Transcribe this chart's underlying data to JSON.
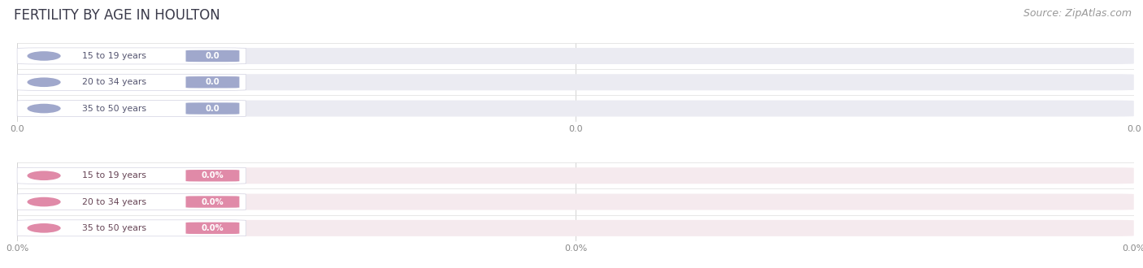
{
  "title": "FERTILITY BY AGE IN HOULTON",
  "source": "Source: ZipAtlas.com",
  "top_section": {
    "categories": [
      "15 to 19 years",
      "20 to 34 years",
      "35 to 50 years"
    ],
    "values": [
      0.0,
      0.0,
      0.0
    ],
    "bar_bg_color": "#ebebf2",
    "dot_color": "#a0a8cc",
    "label_text_color": "#555570",
    "value_bg_color": "#a0a8cc",
    "value_text_color": "#ffffff",
    "tick_labels": [
      "0.0",
      "0.0",
      "0.0"
    ],
    "xlabel_tick_labels": [
      "0.0",
      "0.0",
      "0.0"
    ]
  },
  "bottom_section": {
    "categories": [
      "15 to 19 years",
      "20 to 34 years",
      "35 to 50 years"
    ],
    "values": [
      0.0,
      0.0,
      0.0
    ],
    "bar_bg_color": "#f5eaee",
    "dot_color": "#e08aa8",
    "label_text_color": "#664455",
    "value_bg_color": "#e08aa8",
    "value_text_color": "#ffffff",
    "tick_labels": [
      "0.0%",
      "0.0%",
      "0.0%"
    ],
    "xlabel_tick_labels": [
      "0.0%",
      "0.0%",
      "0.0%"
    ]
  },
  "bg_color": "#ffffff",
  "title_color": "#3a3a4a",
  "title_fontsize": 12,
  "source_color": "#999999",
  "source_fontsize": 9,
  "grid_color": "#cccccc",
  "separator_color": "#dddddd"
}
